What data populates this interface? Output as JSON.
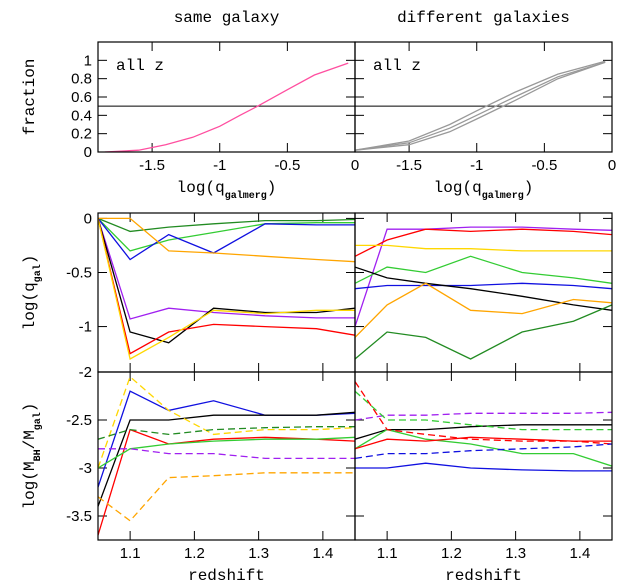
{
  "chart_data": [
    {
      "type": "line",
      "title": "same galaxy",
      "annotation": "all z",
      "ylabel": "fraction",
      "xlabel": [
        "log(q",
        "galmerg",
        ")"
      ],
      "xlim": [
        -1.9,
        0
      ],
      "ylim": [
        0,
        1.2
      ],
      "xticks": [
        -1.5,
        -1,
        -0.5,
        0
      ],
      "yticks": [
        0,
        0.2,
        0.4,
        0.6,
        0.8,
        1
      ],
      "hline": 0.5,
      "x": [
        -1.85,
        -1.6,
        -1.4,
        -1.2,
        -1.0,
        -0.85,
        -0.72,
        -0.5,
        -0.3,
        -0.05
      ],
      "series": [
        {
          "color": "#ff4fa0",
          "values": [
            0.0,
            0.02,
            0.08,
            0.16,
            0.28,
            0.4,
            0.5,
            0.68,
            0.84,
            0.97
          ]
        }
      ]
    },
    {
      "type": "line",
      "title": "different galaxies",
      "annotation": "all z",
      "xlabel": [
        "log(q",
        "galmerg",
        ")"
      ],
      "xlim": [
        -1.9,
        0
      ],
      "ylim": [
        0,
        1.2
      ],
      "xticks": [
        -1.5,
        -1,
        -0.5,
        0
      ],
      "hline": 0.5,
      "x": [
        -1.9,
        -1.5,
        -1.2,
        -1.0,
        -0.72,
        -0.4,
        -0.05
      ],
      "series": [
        {
          "color": "#999999",
          "values": [
            0.02,
            0.12,
            0.3,
            0.45,
            0.65,
            0.85,
            0.99
          ]
        },
        {
          "color": "#999999",
          "values": [
            0.02,
            0.08,
            0.22,
            0.36,
            0.56,
            0.8,
            0.98
          ]
        },
        {
          "color": "#999999",
          "values": [
            0.02,
            0.1,
            0.26,
            0.4,
            0.6,
            0.82,
            0.98
          ]
        }
      ]
    },
    {
      "type": "line",
      "ylabel": [
        "log(q",
        "gal",
        ")"
      ],
      "xlim": [
        1.05,
        1.45
      ],
      "ylim": [
        -1.42,
        0.05
      ],
      "yticks": [
        0,
        -0.5,
        -1
      ],
      "x": [
        1.05,
        1.1,
        1.16,
        1.23,
        1.31,
        1.39,
        1.45
      ],
      "series": [
        {
          "color": "#228b22",
          "values": [
            0,
            -0.12,
            -0.08,
            -0.05,
            -0.02,
            -0.02,
            -0.01
          ]
        },
        {
          "color": "#33cc33",
          "values": [
            0,
            -0.3,
            -0.2,
            -0.13,
            -0.05,
            -0.04,
            -0.04
          ]
        },
        {
          "color": "#1010e0",
          "values": [
            0,
            -0.38,
            -0.15,
            -0.32,
            -0.05,
            -0.06,
            -0.06
          ]
        },
        {
          "color": "#ffa500",
          "values": [
            0,
            0,
            -0.3,
            -0.32,
            -0.35,
            -0.38,
            -0.4
          ]
        },
        {
          "color": "#a020f0",
          "values": [
            0,
            -0.93,
            -0.83,
            -0.87,
            -0.9,
            -0.92,
            -0.92
          ]
        },
        {
          "color": "#000000",
          "values": [
            0,
            -1.05,
            -1.15,
            -0.83,
            -0.87,
            -0.87,
            -0.83
          ]
        },
        {
          "color": "#ff0000",
          "values": [
            0,
            -1.25,
            -1.05,
            -0.98,
            -1.0,
            -1.02,
            -1.08
          ]
        },
        {
          "color": "#ffd700",
          "values": [
            0,
            -1.3,
            -1.1,
            -0.85,
            -0.88,
            -0.85,
            -0.85
          ]
        }
      ]
    },
    {
      "type": "line",
      "xlim": [
        1.05,
        1.45
      ],
      "ylim": [
        -1.42,
        0.05
      ],
      "x": [
        1.05,
        1.1,
        1.16,
        1.23,
        1.31,
        1.39,
        1.45
      ],
      "series": [
        {
          "color": "#a020f0",
          "values": [
            -1.0,
            -0.1,
            -0.1,
            -0.08,
            -0.08,
            -0.1,
            -0.11
          ]
        },
        {
          "color": "#ff0000",
          "values": [
            -0.35,
            -0.2,
            -0.1,
            -0.12,
            -0.1,
            -0.12,
            -0.15
          ]
        },
        {
          "color": "#ffd700",
          "values": [
            -0.25,
            -0.25,
            -0.28,
            -0.28,
            -0.3,
            -0.3,
            -0.3
          ]
        },
        {
          "color": "#33cc33",
          "values": [
            -0.6,
            -0.45,
            -0.5,
            -0.35,
            -0.5,
            -0.55,
            -0.6
          ]
        },
        {
          "color": "#1010e0",
          "values": [
            -0.65,
            -0.62,
            -0.62,
            -0.62,
            -0.6,
            -0.62,
            -0.65
          ]
        },
        {
          "color": "#000000",
          "values": [
            -0.45,
            -0.55,
            -0.6,
            -0.65,
            -0.72,
            -0.8,
            -0.85
          ]
        },
        {
          "color": "#ffa500",
          "values": [
            -1.1,
            -0.8,
            -0.6,
            -0.85,
            -0.88,
            -0.75,
            -0.78
          ]
        },
        {
          "color": "#228b22",
          "values": [
            -1.3,
            -1.05,
            -1.1,
            -1.3,
            -1.05,
            -0.95,
            -0.8
          ]
        }
      ]
    },
    {
      "type": "line",
      "ylabel": [
        "log(M",
        "BH",
        "/M",
        "gal",
        ")"
      ],
      "xlabel": "redshift",
      "xlim": [
        1.05,
        1.45
      ],
      "ylim": [
        -3.75,
        -2
      ],
      "xticks": [
        1.1,
        1.2,
        1.3,
        1.4
      ],
      "yticks": [
        -2,
        -2.5,
        -3,
        -3.5
      ],
      "x": [
        1.05,
        1.1,
        1.16,
        1.23,
        1.31,
        1.39,
        1.45
      ],
      "series": [
        {
          "color": "#1010e0",
          "values": [
            -3.2,
            -2.2,
            -2.4,
            -2.3,
            -2.45,
            -2.45,
            -2.43
          ]
        },
        {
          "color": "#ff0000",
          "values": [
            -3.7,
            -2.6,
            -2.75,
            -2.7,
            -2.68,
            -2.7,
            -2.72
          ]
        },
        {
          "color": "#000000",
          "values": [
            -3.4,
            -2.5,
            -2.5,
            -2.45,
            -2.45,
            -2.45,
            -2.42
          ]
        },
        {
          "color": "#33cc33",
          "values": [
            -3.0,
            -2.8,
            -2.75,
            -2.72,
            -2.7,
            -2.7,
            -2.68
          ]
        },
        {
          "color": "#ffa500",
          "dash": true,
          "values": [
            -3.3,
            -3.55,
            -3.1,
            -3.08,
            -3.05,
            -3.05,
            -3.05
          ]
        },
        {
          "color": "#ffd700",
          "dash": true,
          "values": [
            -3.0,
            -2.05,
            -2.4,
            -2.65,
            -2.6,
            -2.6,
            -2.58
          ]
        },
        {
          "color": "#a020f0",
          "dash": true,
          "values": [
            -2.8,
            -2.8,
            -2.85,
            -2.85,
            -2.9,
            -2.9,
            -2.9
          ]
        },
        {
          "color": "#228b22",
          "dash": true,
          "values": [
            -2.7,
            -2.6,
            -2.65,
            -2.6,
            -2.58,
            -2.57,
            -2.57
          ]
        }
      ]
    },
    {
      "type": "line",
      "xlabel": "redshift",
      "xlim": [
        1.05,
        1.45
      ],
      "ylim": [
        -3.75,
        -2
      ],
      "xticks": [
        1.1,
        1.2,
        1.3,
        1.4
      ],
      "x": [
        1.05,
        1.1,
        1.16,
        1.23,
        1.31,
        1.39,
        1.45
      ],
      "series": [
        {
          "color": "#1010e0",
          "values": [
            -3.0,
            -3.0,
            -2.95,
            -3.0,
            -3.02,
            -3.03,
            -3.03
          ]
        },
        {
          "color": "#000000",
          "values": [
            -2.7,
            -2.6,
            -2.6,
            -2.57,
            -2.55,
            -2.55,
            -2.55
          ]
        },
        {
          "color": "#33cc33",
          "values": [
            -2.8,
            -2.6,
            -2.7,
            -2.75,
            -2.85,
            -2.85,
            -2.98
          ]
        },
        {
          "color": "#ff0000",
          "values": [
            -2.8,
            -2.7,
            -2.72,
            -2.68,
            -2.7,
            -2.72,
            -2.72
          ]
        },
        {
          "color": "#a020f0",
          "dash": true,
          "values": [
            -2.5,
            -2.45,
            -2.45,
            -2.43,
            -2.43,
            -2.43,
            -2.42
          ]
        },
        {
          "color": "#33cc33",
          "dash": true,
          "values": [
            -2.2,
            -2.5,
            -2.5,
            -2.55,
            -2.6,
            -2.6,
            -2.6
          ]
        },
        {
          "color": "#ff0000",
          "dash": true,
          "values": [
            -2.1,
            -2.6,
            -2.65,
            -2.7,
            -2.72,
            -2.72,
            -2.75
          ]
        },
        {
          "color": "#1010e0",
          "dash": true,
          "values": [
            -2.9,
            -2.85,
            -2.85,
            -2.82,
            -2.8,
            -2.78,
            -2.75
          ]
        }
      ]
    }
  ]
}
